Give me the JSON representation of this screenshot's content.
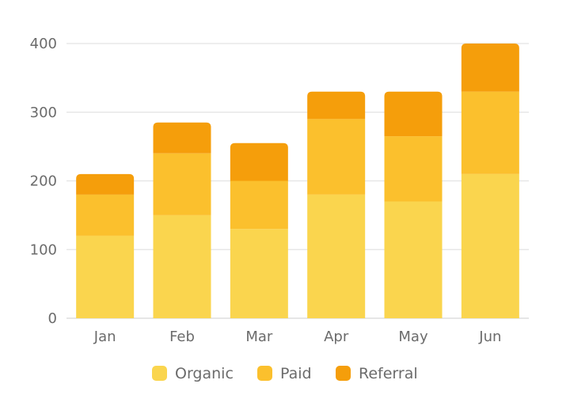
{
  "chart_data": {
    "type": "bar",
    "stacked": true,
    "categories": [
      "Jan",
      "Feb",
      "Mar",
      "Apr",
      "May",
      "Jun"
    ],
    "series": [
      {
        "name": "Organic",
        "values": [
          120,
          150,
          130,
          180,
          170,
          210
        ],
        "color": "#FAD54E"
      },
      {
        "name": "Paid",
        "values": [
          60,
          90,
          70,
          110,
          95,
          120
        ],
        "color": "#FBC02D"
      },
      {
        "name": "Referral",
        "values": [
          30,
          45,
          55,
          40,
          65,
          70
        ],
        "color": "#F59E0B"
      }
    ],
    "ylim": [
      0,
      400
    ],
    "yticks": [
      0,
      100,
      200,
      300,
      400
    ],
    "ytick_labels": [
      "0",
      "100",
      "200",
      "300",
      "400"
    ],
    "grid": true,
    "legend_position": "bottom-center",
    "title": "",
    "xlabel": "",
    "ylabel": ""
  }
}
